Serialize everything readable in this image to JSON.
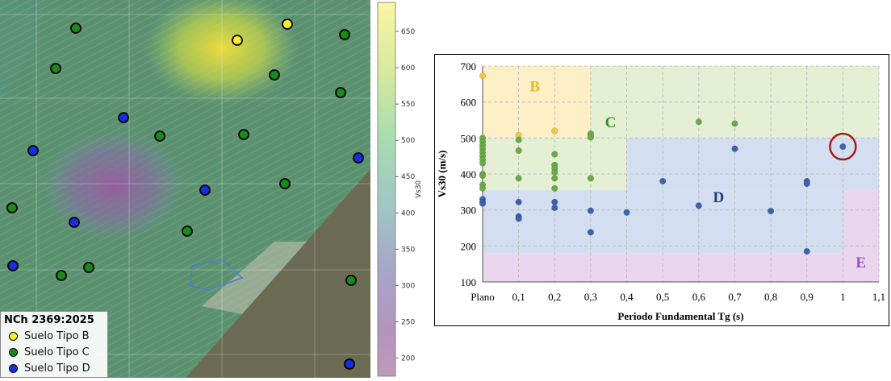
{
  "map": {
    "legend": {
      "title": "NCh 2369:2025",
      "items": [
        {
          "label": "Suelo Tipo B",
          "color": "#f7ef2a"
        },
        {
          "label": "Suelo Tipo C",
          "color": "#1a8a1a"
        },
        {
          "label": "Suelo Tipo D",
          "color": "#1530e0"
        }
      ]
    }
  },
  "colorbar": {
    "label": "Vs30",
    "ticks": [
      650,
      600,
      550,
      500,
      450,
      400,
      350,
      300,
      250,
      200
    ],
    "range": [
      175,
      690
    ]
  },
  "chart_data": {
    "type": "scatter",
    "xlabel": "Periodo Fundamental Tg (s)",
    "ylabel": "Vs30 (m/s)",
    "xtick_labels": [
      "Plano",
      "0,1",
      "0,2",
      "0,3",
      "0,4",
      "0,5",
      "0,6",
      "0,7",
      "0,8",
      "0,9",
      "1",
      "1,1"
    ],
    "xlim": [
      0,
      1.1
    ],
    "ylim": [
      100,
      700
    ],
    "yticks": [
      100,
      200,
      300,
      400,
      500,
      600,
      700
    ],
    "grid": true,
    "zones": [
      {
        "label": "B",
        "color": "#e9b82a"
      },
      {
        "label": "C",
        "color": "#3a8a2e"
      },
      {
        "label": "D",
        "color": "#1f3d7a"
      },
      {
        "label": "E",
        "color": "#9a50b8"
      }
    ],
    "series": [
      {
        "color": "#f2c84b",
        "points": [
          [
            0,
            673
          ],
          [
            0.1,
            508
          ],
          [
            0.2,
            520
          ],
          [
            0.3,
            508
          ]
        ]
      },
      {
        "color": "#6aaa48",
        "points": [
          [
            0,
            500
          ],
          [
            0,
            490
          ],
          [
            0,
            480
          ],
          [
            0,
            470
          ],
          [
            0,
            460
          ],
          [
            0,
            450
          ],
          [
            0,
            440
          ],
          [
            0,
            430
          ],
          [
            0,
            400
          ],
          [
            0,
            395
          ],
          [
            0,
            370
          ],
          [
            0,
            360
          ],
          [
            0.1,
            495
          ],
          [
            0.1,
            465
          ],
          [
            0.1,
            388
          ],
          [
            0.2,
            455
          ],
          [
            0.2,
            425
          ],
          [
            0.2,
            415
          ],
          [
            0.2,
            405
          ],
          [
            0.2,
            388
          ],
          [
            0.2,
            360
          ],
          [
            0.3,
            512
          ],
          [
            0.3,
            502
          ],
          [
            0.3,
            388
          ],
          [
            0.6,
            545
          ],
          [
            0.7,
            540
          ]
        ]
      },
      {
        "color": "#3b62b0",
        "points": [
          [
            0,
            330
          ],
          [
            0,
            322
          ],
          [
            0,
            318
          ],
          [
            0.1,
            322
          ],
          [
            0.1,
            282
          ],
          [
            0.1,
            276
          ],
          [
            0.2,
            322
          ],
          [
            0.2,
            306
          ],
          [
            0.3,
            298
          ],
          [
            0.3,
            238
          ],
          [
            0.4,
            293
          ],
          [
            0.5,
            380
          ],
          [
            0.6,
            312
          ],
          [
            0.7,
            470
          ],
          [
            0.8,
            297
          ],
          [
            0.9,
            380
          ],
          [
            0.9,
            373
          ],
          [
            0.9,
            185
          ],
          [
            1.0,
            476
          ]
        ]
      }
    ]
  }
}
